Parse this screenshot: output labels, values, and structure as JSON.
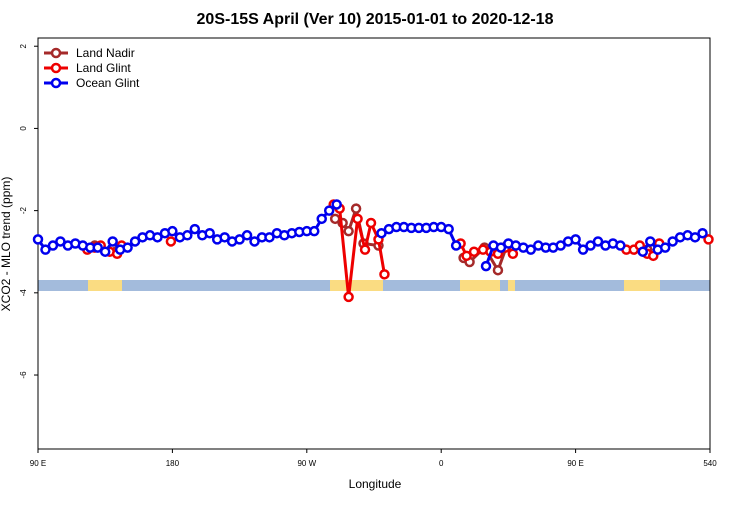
{
  "chart_data": {
    "type": "line",
    "title": "20S-15S April (Ver 10)   2015-01-01 to 2020-12-18",
    "x_label": "Longitude",
    "y_label": "XCO2 - MLO trend (ppm)",
    "xlim": [
      90,
      540
    ],
    "xticks": [
      {
        "value": 90,
        "label": "90 E"
      },
      180,
      {
        "value": 270,
        "label": "90 W"
      },
      {
        "value": 360,
        "label": "0"
      },
      {
        "value": 450,
        "label": "90 E"
      },
      540
    ],
    "ylim": [
      -7.8,
      2.2
    ],
    "yticks": [
      2,
      0,
      -2,
      -4,
      -6
    ],
    "legend": "top-left",
    "series": [
      {
        "name": "Land Nadir",
        "color": "#a52a2a",
        "x": [
          128,
          142,
          250,
          289,
          294,
          298,
          303,
          308,
          318,
          350,
          375,
          379,
          389,
          398,
          404,
          450,
          498
        ],
        "values": [
          -2.85,
          -3.0,
          null,
          -2.2,
          -2.3,
          -2.5,
          -1.95,
          -2.8,
          -2.85,
          null,
          -3.15,
          -3.25,
          -2.9,
          -3.45,
          -2.85,
          null,
          -2.95
        ]
      },
      {
        "name": "Land Glint",
        "color": "#ee0000",
        "x": [
          123,
          128,
          132,
          138,
          143,
          146,
          160,
          179,
          230,
          288,
          292,
          298,
          304,
          309,
          313,
          318,
          322,
          350,
          373,
          377,
          382,
          388,
          393,
          398,
          403,
          408,
          450,
          484,
          489,
          493,
          498,
          502,
          506,
          520,
          539
        ],
        "values": [
          -2.95,
          -2.9,
          -2.85,
          -3.0,
          -3.05,
          -2.85,
          null,
          -2.75,
          null,
          -1.85,
          -1.95,
          -4.1,
          -2.2,
          -2.95,
          -2.3,
          -2.7,
          -3.55,
          null,
          -2.8,
          -3.1,
          -3.0,
          -2.95,
          -3.0,
          -3.05,
          -2.9,
          -3.05,
          null,
          -2.95,
          -2.95,
          -2.85,
          -3.05,
          -3.1,
          -2.8,
          null,
          -2.7
        ]
      },
      {
        "name": "Ocean Glint",
        "color": "#0000ee",
        "x": [
          90,
          95,
          100,
          105,
          110,
          115,
          120,
          125,
          130,
          135,
          140,
          145,
          150,
          155,
          160,
          165,
          170,
          175,
          180,
          185,
          190,
          195,
          200,
          205,
          210,
          215,
          220,
          225,
          230,
          235,
          240,
          245,
          250,
          255,
          260,
          265,
          270,
          275,
          280,
          285,
          290,
          305,
          320,
          325,
          330,
          335,
          340,
          345,
          350,
          355,
          360,
          365,
          370,
          380,
          390,
          395,
          400,
          405,
          410,
          415,
          420,
          425,
          430,
          435,
          440,
          445,
          450,
          455,
          460,
          465,
          470,
          475,
          480,
          488,
          495,
          500,
          505,
          510,
          515,
          520,
          525,
          530,
          535
        ],
        "values": [
          -2.7,
          -2.95,
          -2.85,
          -2.75,
          -2.85,
          -2.8,
          -2.85,
          -2.9,
          -2.9,
          -3.0,
          -2.75,
          -2.95,
          -2.9,
          -2.75,
          -2.65,
          -2.6,
          -2.65,
          -2.55,
          -2.5,
          -2.65,
          -2.6,
          -2.45,
          -2.6,
          -2.55,
          -2.7,
          -2.65,
          -2.75,
          -2.7,
          -2.6,
          -2.75,
          -2.65,
          -2.65,
          -2.55,
          -2.6,
          -2.55,
          -2.52,
          -2.5,
          -2.5,
          -2.2,
          -2.0,
          -1.85,
          null,
          -2.55,
          -2.45,
          -2.4,
          -2.4,
          -2.42,
          -2.42,
          -2.42,
          -2.4,
          -2.4,
          -2.45,
          -2.85,
          null,
          -3.35,
          -2.85,
          -2.9,
          -2.8,
          -2.85,
          -2.9,
          -2.95,
          -2.85,
          -2.9,
          -2.9,
          -2.85,
          -2.75,
          -2.7,
          -2.95,
          -2.85,
          -2.75,
          -2.85,
          -2.8,
          -2.85,
          null,
          -3.0,
          -2.75,
          -2.95,
          -2.9,
          -2.75,
          -2.65,
          -2.6,
          -2.65,
          -2.55
        ]
      }
    ]
  }
}
